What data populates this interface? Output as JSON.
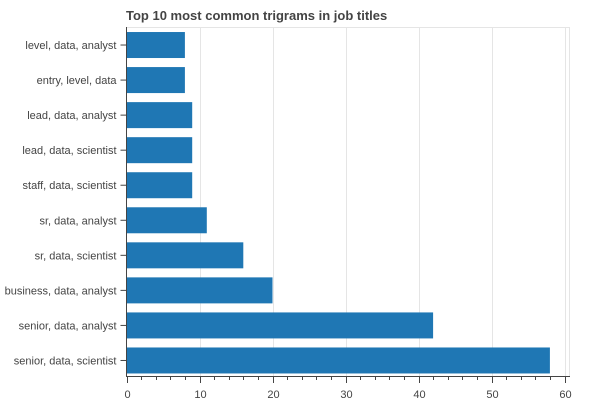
{
  "chart_data": {
    "type": "bar",
    "orientation": "horizontal",
    "title": "Top 10 most common trigrams in job titles",
    "xlabel": "",
    "ylabel": "",
    "categories": [
      "level, data, analyst",
      "entry, level, data",
      "lead, data, analyst",
      "lead, data, scientist",
      "staff, data, scientist",
      "sr, data, analyst",
      "sr, data, scientist",
      "business, data, analyst",
      "senior, data, analyst",
      "senior, data, scientist"
    ],
    "values": [
      8,
      8,
      9,
      9,
      9,
      11,
      16,
      20,
      42,
      58
    ],
    "xlim": [
      0,
      60
    ],
    "x_ticks": [
      0,
      10,
      20,
      30,
      40,
      50,
      60
    ],
    "grid": true,
    "bar_color": "#1f77b4"
  }
}
